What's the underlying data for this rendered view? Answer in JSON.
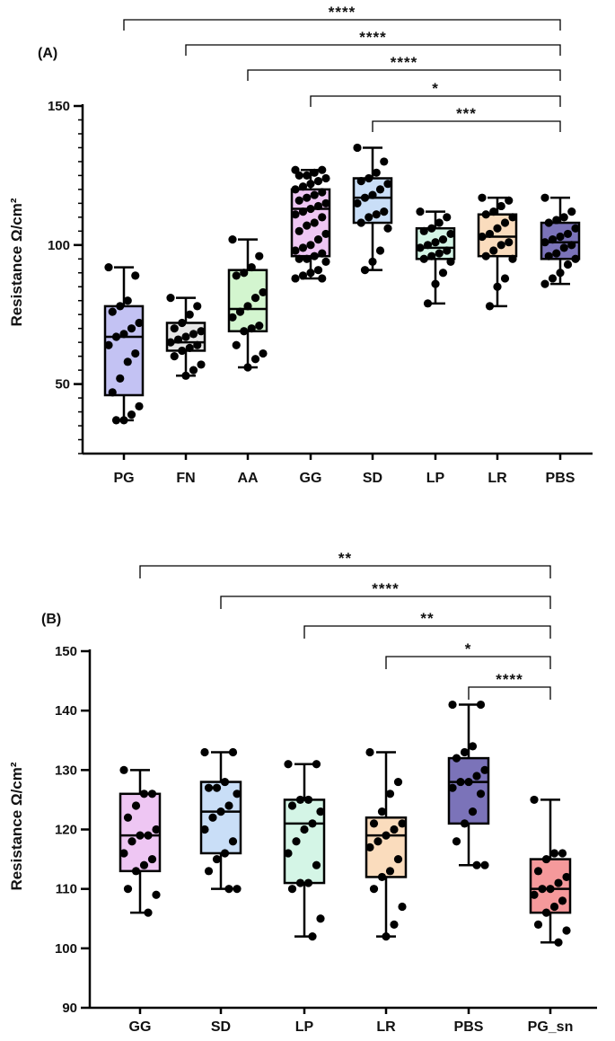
{
  "chart_data": [
    {
      "type": "box",
      "panel": "(A)",
      "ylabel": "Resistance Ω/cm²",
      "ylim": [
        25,
        150
      ],
      "yticks": [
        50,
        100,
        150
      ],
      "categories": [
        "PG",
        "FN",
        "AA",
        "GG",
        "SD",
        "LP",
        "LR",
        "PBS"
      ],
      "boxes": [
        {
          "category": "PG",
          "color": "#c3c2f3",
          "min": 37,
          "q1": 46,
          "median": 67,
          "q3": 78,
          "max": 92,
          "points": [
            92,
            89,
            80,
            78,
            76,
            72,
            70,
            68,
            67,
            64,
            61,
            58,
            52,
            47,
            42,
            39,
            37,
            37
          ]
        },
        {
          "category": "FN",
          "color": "#e6e6e6",
          "min": 53,
          "q1": 62,
          "median": 65,
          "q3": 72,
          "max": 81,
          "points": [
            81,
            78,
            75,
            72,
            70,
            69,
            68,
            67,
            66,
            65,
            64,
            63,
            62,
            60,
            57,
            55,
            53
          ]
        },
        {
          "category": "AA",
          "color": "#d3f5cf",
          "min": 56,
          "q1": 69,
          "median": 77,
          "q3": 91,
          "max": 102,
          "points": [
            102,
            96,
            92,
            90,
            89,
            83,
            81,
            78,
            76,
            74,
            71,
            70,
            69,
            64,
            61,
            59,
            56
          ]
        },
        {
          "category": "GG",
          "color": "#eec6f3",
          "min": 88,
          "q1": 96,
          "median": 113,
          "q3": 120,
          "max": 127,
          "points": [
            127,
            127,
            126,
            125,
            125,
            124,
            123,
            122,
            121,
            120,
            119,
            118,
            117,
            116,
            115,
            114,
            113,
            112,
            111,
            110,
            108,
            107,
            105,
            104,
            102,
            100,
            99,
            98,
            97,
            96,
            95,
            95,
            94,
            91,
            90,
            89,
            88,
            88
          ]
        },
        {
          "category": "SD",
          "color": "#c9def7",
          "min": 91,
          "q1": 108,
          "median": 117,
          "q3": 124,
          "max": 135,
          "points": [
            135,
            130,
            126,
            124,
            123,
            122,
            120,
            118,
            117,
            115,
            112,
            111,
            110,
            108,
            106,
            98,
            94,
            91
          ]
        },
        {
          "category": "LP",
          "color": "#d4f5e6",
          "min": 79,
          "q1": 95,
          "median": 99,
          "q3": 106,
          "max": 112,
          "points": [
            112,
            110,
            108,
            106,
            105,
            104,
            102,
            101,
            100,
            99,
            98,
            97,
            96,
            95,
            94,
            90,
            86,
            79
          ]
        },
        {
          "category": "LR",
          "color": "#fadcbd",
          "min": 78,
          "q1": 96,
          "median": 103,
          "q3": 111,
          "max": 117,
          "points": [
            117,
            116,
            114,
            112,
            111,
            110,
            108,
            106,
            104,
            103,
            101,
            100,
            98,
            96,
            95,
            88,
            85,
            78
          ]
        },
        {
          "category": "PBS",
          "color": "#7b73b9",
          "min": 86,
          "q1": 95,
          "median": 101,
          "q3": 108,
          "max": 117,
          "points": [
            117,
            112,
            110,
            109,
            108,
            106,
            104,
            103,
            102,
            101,
            100,
            99,
            97,
            96,
            95,
            93,
            90,
            88,
            86
          ]
        }
      ],
      "significance": [
        {
          "from": "PG",
          "to": "PBS",
          "label": "****"
        },
        {
          "from": "FN",
          "to": "PBS",
          "label": "****"
        },
        {
          "from": "AA",
          "to": "PBS",
          "label": "****"
        },
        {
          "from": "GG",
          "to": "PBS",
          "label": "*"
        },
        {
          "from": "SD",
          "to": "PBS",
          "label": "***"
        }
      ]
    },
    {
      "type": "box",
      "panel": "(B)",
      "ylabel": "Resistance Ω/cm²",
      "ylim": [
        90,
        150
      ],
      "yticks": [
        90,
        100,
        110,
        120,
        130,
        140,
        150
      ],
      "categories": [
        "GG",
        "SD",
        "LP",
        "LR",
        "PBS",
        "PG_sn"
      ],
      "boxes": [
        {
          "category": "GG",
          "color": "#eec6f3",
          "min": 106,
          "q1": 113,
          "median": 119,
          "q3": 126,
          "max": 130,
          "points": [
            130,
            126,
            126,
            124,
            122,
            120,
            119,
            119,
            118,
            116,
            115,
            114,
            113,
            110,
            109,
            106
          ]
        },
        {
          "category": "SD",
          "color": "#c9def7",
          "min": 110,
          "q1": 116,
          "median": 123,
          "q3": 128,
          "max": 133,
          "points": [
            133,
            133,
            128,
            127,
            127,
            126,
            124,
            123,
            122,
            120,
            118,
            116,
            115,
            113,
            110,
            110
          ]
        },
        {
          "category": "LP",
          "color": "#d4f5e6",
          "min": 102,
          "q1": 111,
          "median": 121,
          "q3": 125,
          "max": 131,
          "points": [
            131,
            131,
            125,
            125,
            124,
            123,
            121,
            120,
            118,
            116,
            114,
            111,
            111,
            110,
            105,
            102
          ]
        },
        {
          "category": "LR",
          "color": "#fadcbd",
          "min": 102,
          "q1": 112,
          "median": 119,
          "q3": 122,
          "max": 133,
          "points": [
            133,
            128,
            126,
            123,
            121,
            121,
            120,
            119,
            118,
            117,
            115,
            113,
            112,
            110,
            107,
            104,
            102
          ]
        },
        {
          "category": "PBS",
          "color": "#7b73b9",
          "min": 114,
          "q1": 121,
          "median": 128,
          "q3": 132,
          "max": 141,
          "points": [
            141,
            141,
            134,
            133,
            132,
            130,
            129,
            128,
            128,
            127,
            126,
            123,
            121,
            118,
            114,
            114
          ]
        },
        {
          "category": "PG_sn",
          "color": "#f5999b",
          "min": 101,
          "q1": 106,
          "median": 110,
          "q3": 115,
          "max": 125,
          "points": [
            125,
            116,
            116,
            115,
            113,
            112,
            111,
            110,
            110,
            109,
            108,
            107,
            106,
            104,
            103,
            101
          ]
        }
      ],
      "significance": [
        {
          "from": "GG",
          "to": "PG_sn",
          "label": "**"
        },
        {
          "from": "SD",
          "to": "PG_sn",
          "label": "****"
        },
        {
          "from": "LP",
          "to": "PG_sn",
          "label": "**"
        },
        {
          "from": "LR",
          "to": "PG_sn",
          "label": "*"
        },
        {
          "from": "PBS",
          "to": "PG_sn",
          "label": "****"
        }
      ]
    }
  ]
}
